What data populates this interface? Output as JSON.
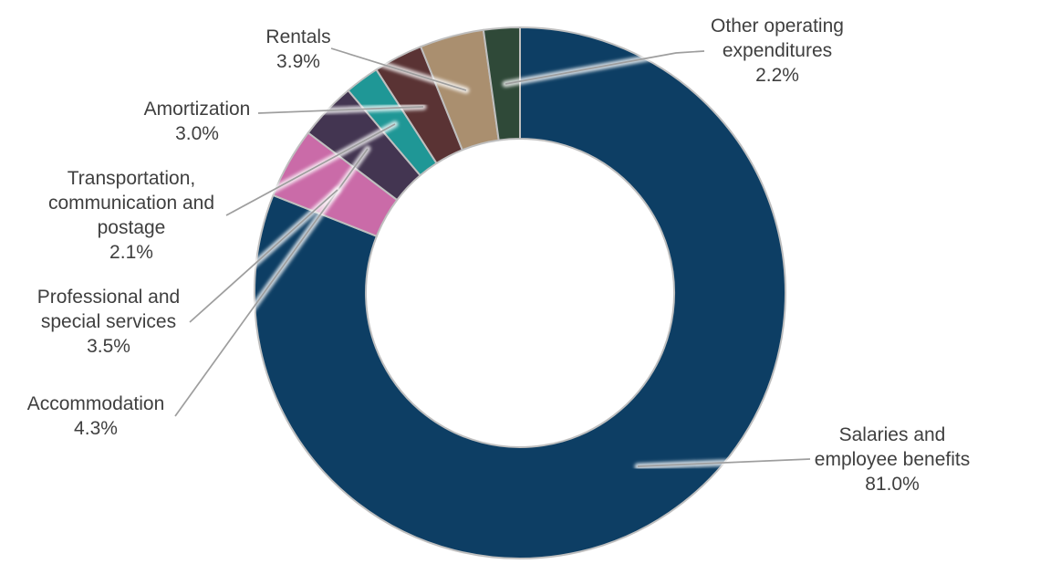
{
  "chart_data": {
    "type": "pie",
    "subtype": "donut",
    "donut_hole_ratio": 0.58,
    "start_angle_deg": 0,
    "direction": "clockwise",
    "background_color": "#ffffff",
    "border_color": "#bfbfbf",
    "leader_line_color": "#9e9e9e",
    "label_text_color": "#3f3f3f",
    "series": [
      {
        "key": "salaries",
        "name": "Salaries and employee benefits",
        "value": 81.0,
        "pct_label": "81.0%",
        "color": "#0d3e64",
        "label_lines": [
          "Salaries and",
          "employee benefits",
          "81.0%"
        ]
      },
      {
        "key": "accommodation",
        "name": "Accommodation",
        "value": 4.3,
        "pct_label": "4.3%",
        "color": "#ca6ba8",
        "label_lines": [
          "Accommodation",
          "4.3%"
        ]
      },
      {
        "key": "professional",
        "name": "Professional and special services",
        "value": 3.5,
        "pct_label": "3.5%",
        "color": "#433551",
        "label_lines": [
          "Professional and",
          "special services",
          "3.5%"
        ]
      },
      {
        "key": "transportation",
        "name": "Transportation, communication and postage",
        "value": 2.1,
        "pct_label": "2.1%",
        "color": "#1f9796",
        "label_lines": [
          "Transportation,",
          "communication and",
          "postage",
          "2.1%"
        ]
      },
      {
        "key": "amortization",
        "name": "Amortization",
        "value": 3.0,
        "pct_label": "3.0%",
        "color": "#5a3334",
        "label_lines": [
          "Amortization",
          "3.0%"
        ]
      },
      {
        "key": "rentals",
        "name": "Rentals",
        "value": 3.9,
        "pct_label": "3.9%",
        "color": "#aa8f6f",
        "label_lines": [
          "Rentals",
          "3.9%"
        ]
      },
      {
        "key": "other",
        "name": "Other operating expenditures",
        "value": 2.2,
        "pct_label": "2.2%",
        "color": "#2f4938",
        "label_lines": [
          "Other operating",
          "expenditures",
          "2.2%"
        ]
      }
    ]
  }
}
